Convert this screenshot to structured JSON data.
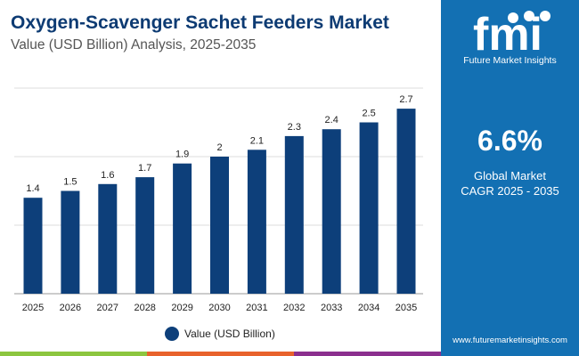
{
  "header": {
    "title": "Oxygen-Scavenger Sachet Feeders Market",
    "subtitle": "Value (USD Billion) Analysis, 2025-2035"
  },
  "sidebar": {
    "brand": "Future Market Insights",
    "cagr_value": "6.6%",
    "cagr_label_1": "Global Market",
    "cagr_label_2": "CAGR 2025 - 2035",
    "url": "www.futuremarketinsights.com",
    "logo_text": "fmi"
  },
  "colors": {
    "bar": "#0d3f7a",
    "sidebar": "#1370b3",
    "bottom_bar": [
      "#8cc63f",
      "#e8622c",
      "#8b2f8e"
    ]
  },
  "chart_data": {
    "type": "bar",
    "categories": [
      "2025",
      "2026",
      "2027",
      "2028",
      "2029",
      "2030",
      "2031",
      "2032",
      "2033",
      "2034",
      "2035"
    ],
    "series": [
      {
        "name": "Value (USD Billion)",
        "values": [
          1.4,
          1.5,
          1.6,
          1.7,
          1.9,
          2,
          2.1,
          2.3,
          2.4,
          2.5,
          2.7
        ]
      }
    ],
    "data_labels": [
      "1.4",
      "1.5",
      "1.6",
      "1.7",
      "1.9",
      "2",
      "2.1",
      "2.3",
      "2.4",
      "2.5",
      "2.7"
    ],
    "ylim": [
      0,
      3
    ],
    "grid": true,
    "legend": "bottom-center"
  }
}
